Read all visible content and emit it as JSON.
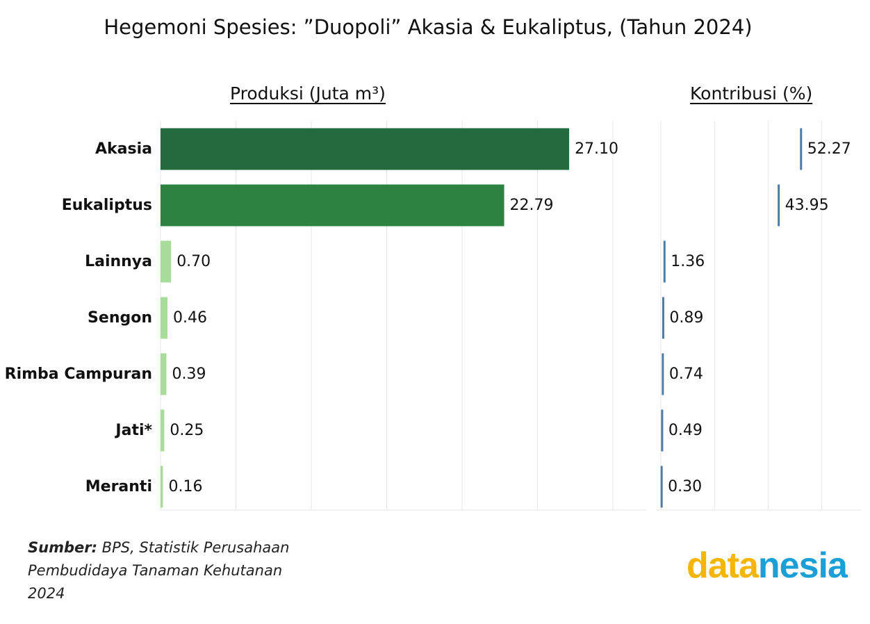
{
  "title": "Hegemoni Spesies: ”Duopoli” Akasia & Eukaliptus, (Tahun 2024)",
  "source": {
    "label": "Sumber:",
    "text": " BPS, Statistik Perusahaan Pembudidaya Tanaman Kehutanan 2024"
  },
  "logo": {
    "part1": "data",
    "part2": "nesia"
  },
  "colors": {
    "bar_major_1": "#236a3e",
    "bar_major_2": "#2e8241",
    "bar_minor": "#a8dc9a",
    "contribution": "#4f7aa6"
  },
  "chart_data": [
    {
      "type": "bar",
      "orientation": "horizontal",
      "title": "Produksi (Juta m³)",
      "categories": [
        "Akasia",
        "Eukaliptus",
        "Lainnya",
        "Sengon",
        "Rimba Campuran",
        "Jati*",
        "Meranti"
      ],
      "values": [
        27.1,
        22.79,
        0.7,
        0.46,
        0.39,
        0.25,
        0.16
      ],
      "value_labels": [
        "27.10",
        "22.79",
        "0.70",
        "0.46",
        "0.39",
        "0.25",
        "0.16"
      ],
      "xlim": [
        0,
        32
      ],
      "grid": true,
      "colors": [
        "#236a3e",
        "#2e8241",
        "#a8dc9a",
        "#a8dc9a",
        "#a8dc9a",
        "#a8dc9a",
        "#a8dc9a"
      ]
    },
    {
      "type": "bar",
      "orientation": "horizontal",
      "title": "Kontribusi (%)",
      "categories": [
        "Akasia",
        "Eukaliptus",
        "Lainnya",
        "Sengon",
        "Rimba Campuran",
        "Jati*",
        "Meranti"
      ],
      "values": [
        52.27,
        43.95,
        1.36,
        0.89,
        0.74,
        0.49,
        0.3
      ],
      "value_labels": [
        "52.27",
        "43.95",
        "1.36",
        "0.89",
        "0.74",
        "0.49",
        "0.30"
      ],
      "xlim": [
        0,
        70
      ],
      "grid": true,
      "mark": "tick"
    }
  ]
}
